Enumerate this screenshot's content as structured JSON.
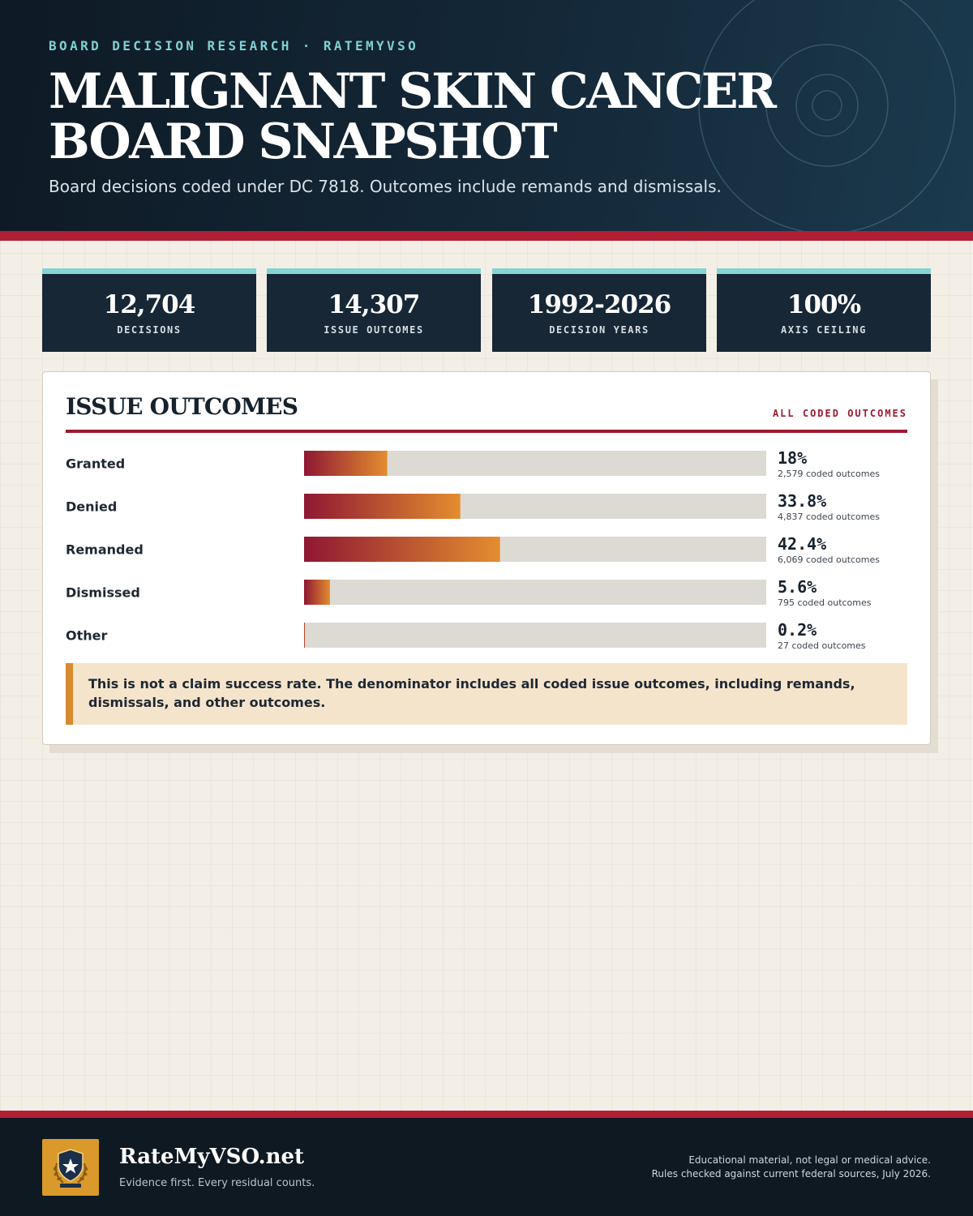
{
  "header": {
    "eyebrow": "BOARD DECISION RESEARCH · RATEMYVSO",
    "title": "MALIGNANT SKIN CANCER BOARD SNAPSHOT",
    "subtitle": "Board decisions coded under DC 7818. Outcomes include remands and dismissals."
  },
  "stats": [
    {
      "value": "12,704",
      "label": "DECISIONS"
    },
    {
      "value": "14,307",
      "label": "ISSUE OUTCOMES"
    },
    {
      "value": "1992-2026",
      "label": "DECISION YEARS"
    },
    {
      "value": "100%",
      "label": "AXIS CEILING"
    }
  ],
  "panel": {
    "title": "ISSUE OUTCOMES",
    "tag": "ALL CODED OUTCOMES",
    "note": "This is not a claim success rate. The denominator includes all coded issue outcomes, including remands, dismissals, and other outcomes."
  },
  "chart_data": {
    "type": "bar",
    "orientation": "horizontal",
    "categories": [
      "Granted",
      "Denied",
      "Remanded",
      "Dismissed",
      "Other"
    ],
    "values": [
      18,
      33.8,
      42.4,
      5.6,
      0.2
    ],
    "value_labels": [
      "18%",
      "33.8%",
      "42.4%",
      "5.6%",
      "0.2%"
    ],
    "counts": [
      "2,579 coded outcomes",
      "4,837 coded outcomes",
      "6,069 coded outcomes",
      "795 coded outcomes",
      "27 coded outcomes"
    ],
    "xlim": [
      0,
      100
    ],
    "unit": "%",
    "grid": false,
    "colors": {
      "bar_start": "#8f1733",
      "bar_end": "#e38d2f",
      "track": "#dcdad3"
    }
  },
  "footer": {
    "brand": "RateMyVSO.net",
    "tagline": "Evidence first. Every residual counts.",
    "disclaimer_line1": "Educational material, not legal or medical advice.",
    "disclaimer_line2": "Rules checked against current federal sources, July 2026."
  },
  "icons": {
    "logo": "shield-star-laurel-icon"
  }
}
